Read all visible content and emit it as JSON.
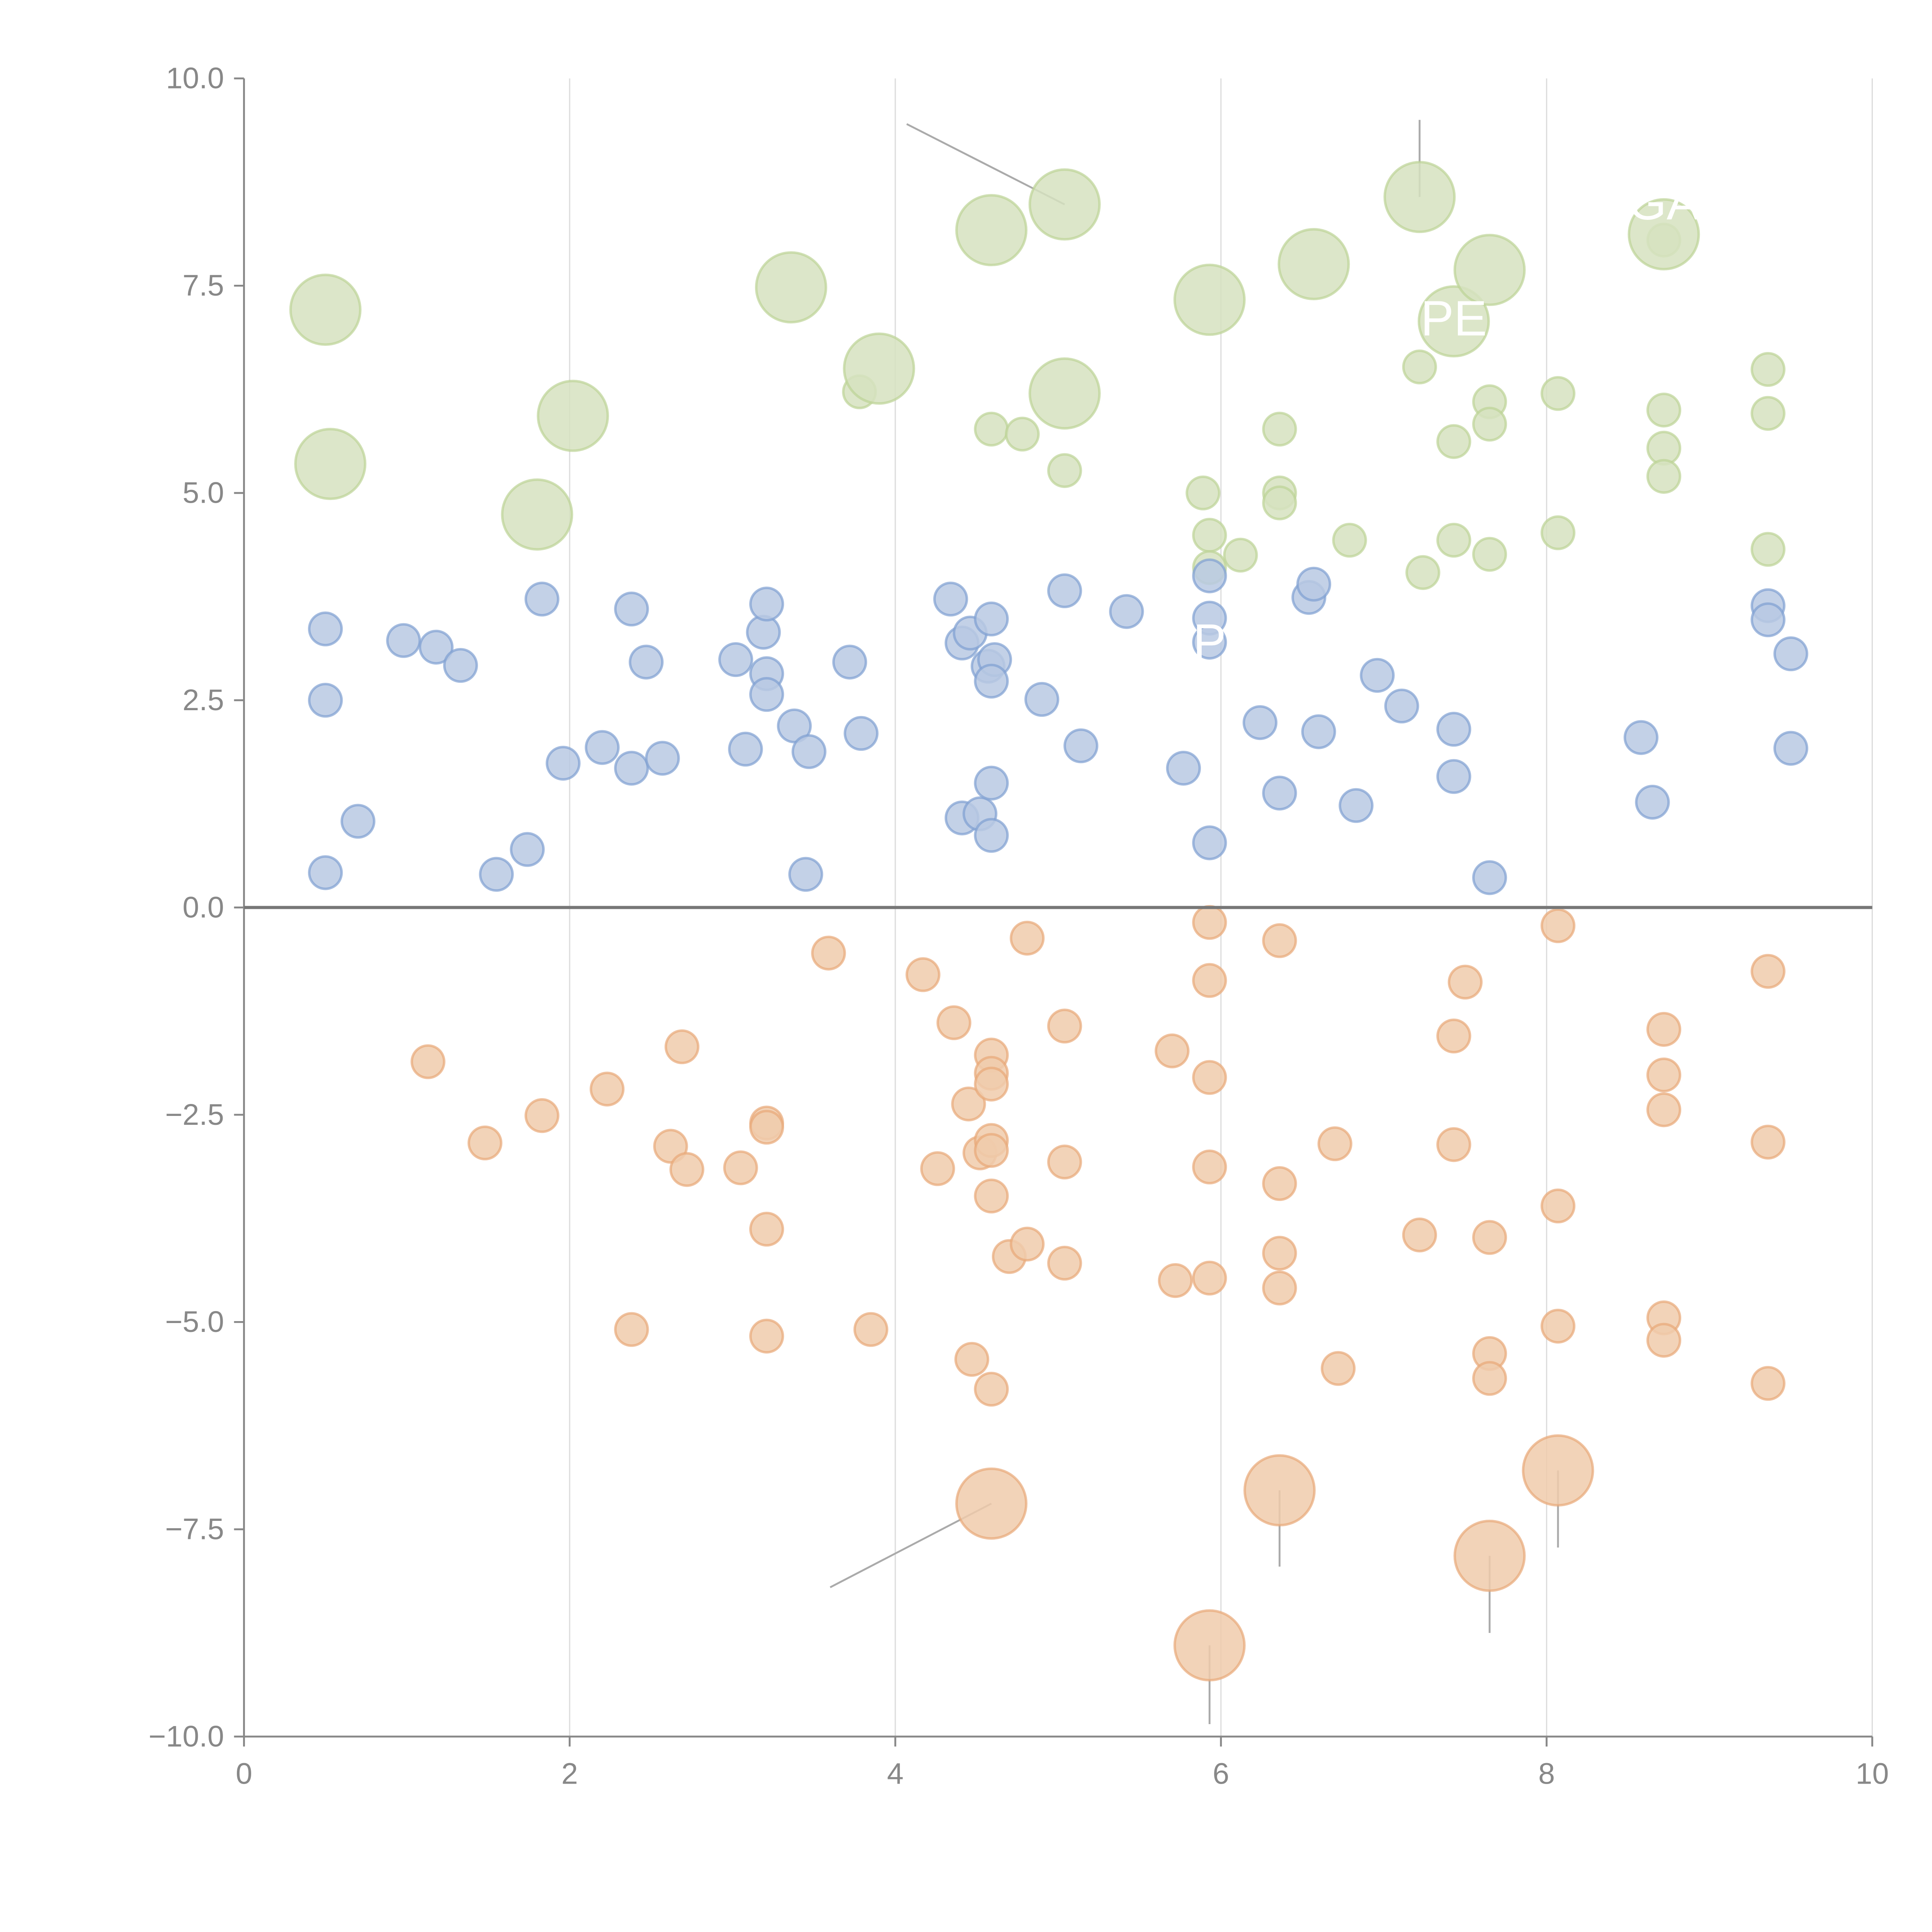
{
  "chart_data": {
    "type": "scatter",
    "title": "",
    "xlabel": "",
    "ylabel": "",
    "xlim": [
      0,
      10
    ],
    "ylim": [
      -10,
      10
    ],
    "grid": "x-major",
    "xticks": [
      "0",
      "2",
      "4",
      "6",
      "8",
      "10"
    ],
    "yticks": [
      "10.0",
      "7.5",
      "5.0",
      "2.5",
      "0.0",
      "−2.5",
      "−5.0",
      "−7.5",
      "−10.0"
    ],
    "xtick_values": [
      0,
      2,
      4,
      6,
      8,
      10
    ],
    "ytick_values": [
      10,
      7.5,
      5,
      2.5,
      0,
      -2.5,
      -5,
      -7.5,
      -10
    ],
    "zero_line": 0,
    "colors": {
      "green_fill": "#d6e2bf",
      "green_stroke": "#bcd396",
      "blue_fill": "#b8c9e3",
      "blue_stroke": "#7fa0d2",
      "orange_fill": "#f0cbac",
      "orange_stroke": "#e8a877",
      "axis": "#888888",
      "grid": "#dddddd",
      "leader": "#aaaaaa"
    },
    "series": [
      {
        "name": "green-small",
        "color": "green",
        "size": "small",
        "points": [
          [
            3.78,
            6.22
          ],
          [
            4.59,
            5.77
          ],
          [
            4.78,
            5.71
          ],
          [
            5.04,
            5.27
          ],
          [
            5.89,
            5.0
          ],
          [
            5.93,
            4.49
          ],
          [
            5.93,
            4.1
          ],
          [
            6.12,
            4.25
          ],
          [
            6.36,
            5.77
          ],
          [
            6.36,
            5.0
          ],
          [
            6.36,
            4.88
          ],
          [
            6.79,
            4.43
          ],
          [
            7.24,
            4.04
          ],
          [
            7.22,
            6.52
          ],
          [
            7.43,
            5.62
          ],
          [
            7.43,
            4.43
          ],
          [
            7.65,
            6.1
          ],
          [
            7.65,
            5.83
          ],
          [
            7.65,
            4.26
          ],
          [
            8.07,
            6.2
          ],
          [
            8.07,
            4.52
          ],
          [
            8.72,
            8.05
          ],
          [
            8.72,
            6.0
          ],
          [
            8.72,
            5.54
          ],
          [
            8.72,
            5.2
          ],
          [
            9.36,
            6.49
          ],
          [
            9.36,
            5.96
          ],
          [
            9.36,
            4.32
          ]
        ]
      },
      {
        "name": "green-large",
        "color": "green",
        "size": "large",
        "points": [
          [
            0.5,
            7.21
          ],
          [
            0.53,
            5.35
          ],
          [
            1.8,
            4.74
          ],
          [
            2.02,
            5.93
          ],
          [
            3.36,
            7.48
          ],
          [
            3.9,
            6.5
          ],
          [
            4.59,
            8.17
          ],
          [
            5.04,
            8.48
          ],
          [
            5.04,
            6.2
          ],
          [
            5.93,
            7.33
          ],
          [
            6.57,
            7.76
          ],
          [
            7.22,
            8.57
          ],
          [
            7.43,
            7.07
          ],
          [
            7.65,
            7.69
          ],
          [
            8.72,
            8.12
          ]
        ]
      },
      {
        "name": "blue",
        "color": "blue",
        "size": "small",
        "points": [
          [
            0.5,
            3.36
          ],
          [
            0.5,
            2.5
          ],
          [
            0.5,
            0.42
          ],
          [
            0.7,
            1.04
          ],
          [
            0.98,
            3.22
          ],
          [
            1.18,
            3.14
          ],
          [
            1.33,
            2.92
          ],
          [
            1.55,
            0.4
          ],
          [
            1.74,
            0.7
          ],
          [
            1.83,
            3.72
          ],
          [
            1.96,
            1.74
          ],
          [
            2.2,
            1.93
          ],
          [
            2.38,
            3.6
          ],
          [
            2.38,
            1.68
          ],
          [
            2.47,
            2.96
          ],
          [
            2.57,
            1.8
          ],
          [
            3.02,
            2.99
          ],
          [
            3.08,
            1.91
          ],
          [
            3.19,
            3.32
          ],
          [
            3.21,
            3.66
          ],
          [
            3.21,
            2.82
          ],
          [
            3.21,
            2.57
          ],
          [
            3.38,
            2.19
          ],
          [
            3.47,
            1.88
          ],
          [
            3.45,
            0.4
          ],
          [
            3.72,
            2.96
          ],
          [
            3.79,
            2.1
          ],
          [
            4.34,
            3.72
          ],
          [
            4.41,
            3.19
          ],
          [
            4.46,
            3.31
          ],
          [
            4.41,
            1.08
          ],
          [
            4.52,
            1.13
          ],
          [
            4.59,
            3.48
          ],
          [
            4.57,
            2.91
          ],
          [
            4.61,
            2.99
          ],
          [
            4.59,
            2.73
          ],
          [
            4.59,
            1.5
          ],
          [
            4.59,
            0.87
          ],
          [
            4.9,
            2.51
          ],
          [
            5.04,
            3.82
          ],
          [
            5.14,
            1.95
          ],
          [
            5.42,
            3.57
          ],
          [
            5.77,
            1.68
          ],
          [
            5.93,
            4.0
          ],
          [
            5.93,
            3.49
          ],
          [
            5.93,
            3.2
          ],
          [
            5.93,
            0.78
          ],
          [
            6.24,
            2.23
          ],
          [
            6.36,
            1.38
          ],
          [
            6.54,
            3.74
          ],
          [
            6.57,
            3.9
          ],
          [
            6.6,
            2.12
          ],
          [
            6.83,
            1.23
          ],
          [
            6.96,
            2.8
          ],
          [
            7.11,
            2.43
          ],
          [
            7.43,
            2.15
          ],
          [
            7.43,
            1.58
          ],
          [
            7.65,
            0.36
          ],
          [
            8.58,
            2.05
          ],
          [
            8.65,
            1.27
          ],
          [
            9.36,
            3.64
          ],
          [
            9.36,
            3.47
          ],
          [
            9.5,
            3.06
          ],
          [
            9.5,
            1.92
          ]
        ]
      },
      {
        "name": "orange-small",
        "color": "orange",
        "size": "small",
        "points": [
          [
            1.13,
            -1.86
          ],
          [
            1.48,
            -2.84
          ],
          [
            1.83,
            -2.51
          ],
          [
            2.23,
            -2.19
          ],
          [
            2.38,
            -5.09
          ],
          [
            2.62,
            -2.88
          ],
          [
            2.69,
            -1.68
          ],
          [
            2.72,
            -3.16
          ],
          [
            3.05,
            -3.14
          ],
          [
            3.21,
            -2.6
          ],
          [
            3.21,
            -2.65
          ],
          [
            3.21,
            -3.88
          ],
          [
            3.21,
            -5.17
          ],
          [
            3.59,
            -0.55
          ],
          [
            3.85,
            -5.09
          ],
          [
            4.17,
            -0.81
          ],
          [
            4.26,
            -3.15
          ],
          [
            4.36,
            -1.39
          ],
          [
            4.45,
            -2.37
          ],
          [
            4.47,
            -5.45
          ],
          [
            4.52,
            -2.96
          ],
          [
            4.59,
            -1.78
          ],
          [
            4.59,
            -2.0
          ],
          [
            4.59,
            -2.13
          ],
          [
            4.59,
            -2.81
          ],
          [
            4.59,
            -2.93
          ],
          [
            4.59,
            -3.48
          ],
          [
            4.59,
            -5.81
          ],
          [
            4.7,
            -4.21
          ],
          [
            4.81,
            -4.06
          ],
          [
            4.81,
            -0.37
          ],
          [
            5.04,
            -1.43
          ],
          [
            5.04,
            -3.07
          ],
          [
            5.04,
            -4.29
          ],
          [
            5.7,
            -1.73
          ],
          [
            5.72,
            -4.5
          ],
          [
            5.93,
            -0.18
          ],
          [
            5.93,
            -0.88
          ],
          [
            5.93,
            -2.05
          ],
          [
            5.93,
            -3.13
          ],
          [
            5.93,
            -4.47
          ],
          [
            6.36,
            -0.4
          ],
          [
            6.36,
            -3.33
          ],
          [
            6.36,
            -4.17
          ],
          [
            6.36,
            -4.59
          ],
          [
            6.7,
            -2.85
          ],
          [
            6.72,
            -5.56
          ],
          [
            7.22,
            -3.95
          ],
          [
            7.43,
            -1.55
          ],
          [
            7.43,
            -2.86
          ],
          [
            7.5,
            -0.9
          ],
          [
            7.65,
            -3.98
          ],
          [
            7.65,
            -5.38
          ],
          [
            7.65,
            -5.68
          ],
          [
            8.07,
            -0.22
          ],
          [
            8.07,
            -3.6
          ],
          [
            8.07,
            -5.05
          ],
          [
            8.72,
            -1.47
          ],
          [
            8.72,
            -2.02
          ],
          [
            8.72,
            -2.44
          ],
          [
            8.72,
            -4.95
          ],
          [
            8.72,
            -5.22
          ],
          [
            9.36,
            -0.77
          ],
          [
            9.36,
            -2.83
          ],
          [
            9.36,
            -5.74
          ]
        ]
      },
      {
        "name": "orange-large",
        "color": "orange",
        "size": "large",
        "points": [
          [
            4.59,
            -7.19
          ],
          [
            6.36,
            -7.03
          ],
          [
            8.07,
            -6.79
          ],
          [
            7.65,
            -7.82
          ],
          [
            5.93,
            -8.9
          ]
        ]
      }
    ],
    "leader_lines": [
      {
        "from": [
          5.04,
          8.48
        ],
        "to": [
          4.07,
          9.45
        ]
      },
      {
        "from": [
          7.22,
          8.57
        ],
        "to": [
          7.22,
          9.5
        ]
      },
      {
        "from": [
          4.59,
          -7.19
        ],
        "to": [
          3.6,
          -8.2
        ]
      },
      {
        "from": [
          6.36,
          -7.03
        ],
        "to": [
          6.36,
          -7.95
        ]
      },
      {
        "from": [
          8.07,
          -6.79
        ],
        "to": [
          8.07,
          -7.72
        ]
      },
      {
        "from": [
          7.65,
          -7.82
        ],
        "to": [
          7.65,
          -8.75
        ]
      },
      {
        "from": [
          5.93,
          -8.9
        ],
        "to": [
          5.93,
          -9.85
        ]
      }
    ],
    "labels": [
      {
        "text": "GA",
        "x": 8.72,
        "y": 8.3
      },
      {
        "text": "PE",
        "x": 7.43,
        "y": 6.9
      },
      {
        "text": "P",
        "x": 5.93,
        "y": 3.0
      }
    ]
  }
}
